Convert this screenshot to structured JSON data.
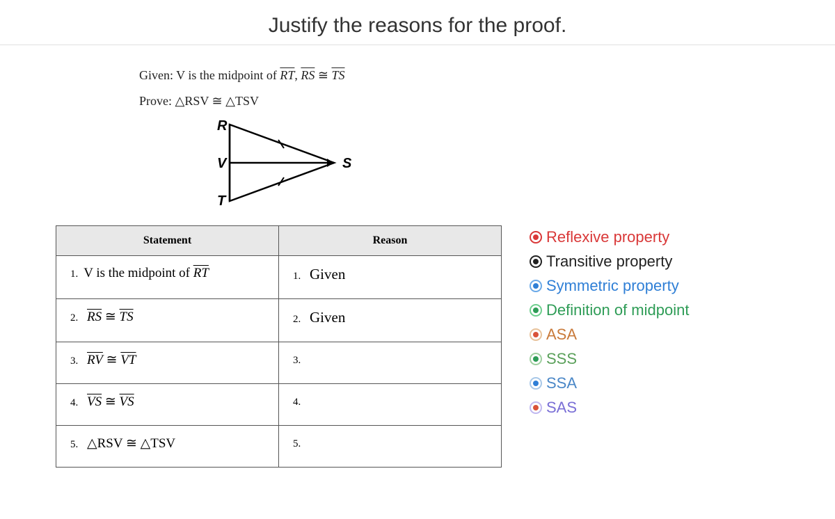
{
  "title": "Justify the reasons for the proof.",
  "given_prefix": "Given: V is the midpoint of ",
  "given_seg": "RT",
  "given_comma": ",  ",
  "given_rs": "RS",
  "given_cong": " ≅ ",
  "given_ts": "TS",
  "prove_prefix": "Prove:  △RSV ≅ △TSV",
  "diagram": {
    "labels": {
      "R": "R",
      "V": "V",
      "T": "T",
      "S": "S"
    }
  },
  "table": {
    "header_statement": "Statement",
    "header_reason": "Reason",
    "rows": [
      {
        "num": "1.",
        "statement_pre": "V is the midpoint of ",
        "statement_seg": "RT",
        "reason_num": "1.",
        "reason": "Given"
      },
      {
        "num": "2.",
        "statement_seg1": "RS",
        "statement_mid": " ≅ ",
        "statement_seg2": "TS",
        "reason_num": "2.",
        "reason": "Given"
      },
      {
        "num": "3.",
        "statement_seg1": "RV",
        "statement_mid": " ≅ ",
        "statement_seg2": "VT",
        "reason_num": "3.",
        "reason": ""
      },
      {
        "num": "4.",
        "statement_seg1": "VS",
        "statement_mid": " ≅ ",
        "statement_seg2": "VS",
        "reason_num": "4.",
        "reason": ""
      },
      {
        "num": "5.",
        "statement_text": "△RSV ≅ △TSV",
        "reason_num": "5.",
        "reason": ""
      }
    ]
  },
  "options": [
    {
      "label": "Reflexive property",
      "text_color": "#d93838",
      "ring_color": "#d93838",
      "dot_color": "#d93838"
    },
    {
      "label": "Transitive property",
      "text_color": "#222222",
      "ring_color": "#222222",
      "dot_color": "#222222"
    },
    {
      "label": "Symmetric property",
      "text_color": "#2f7fd6",
      "ring_color": "#6aa9e8",
      "dot_color": "#2f7fd6"
    },
    {
      "label": "Definition of midpoint",
      "text_color": "#2e9c56",
      "ring_color": "#6fcf8e",
      "dot_color": "#2e9c56"
    },
    {
      "label": "ASA",
      "text_color": "#c97a3a",
      "ring_color": "#e8c29a",
      "dot_color": "#d9533a"
    },
    {
      "label": "SSS",
      "text_color": "#5aa05a",
      "ring_color": "#9fcf9f",
      "dot_color": "#2e9c56"
    },
    {
      "label": "SSA",
      "text_color": "#4a87c7",
      "ring_color": "#a8c8e8",
      "dot_color": "#2f7fd6"
    },
    {
      "label": "SAS",
      "text_color": "#7a6fd6",
      "ring_color": "#c0b8f0",
      "dot_color": "#d9533a"
    }
  ]
}
